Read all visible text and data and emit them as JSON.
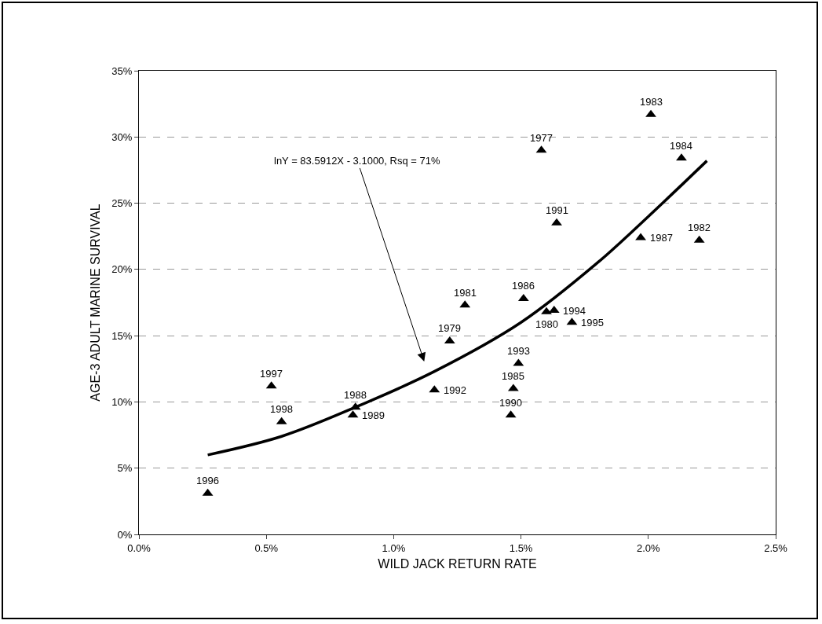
{
  "chart_data": {
    "type": "scatter",
    "xlabel": "WILD JACK RETURN RATE",
    "ylabel": "AGE-3 ADULT MARINE SURVIVAL",
    "xlim": [
      0,
      2.5
    ],
    "xticks": [
      {
        "value": 0,
        "label": "0.0%"
      },
      {
        "value": 0.5,
        "label": "0.5%"
      },
      {
        "value": 1,
        "label": "1.0%"
      },
      {
        "value": 1.5,
        "label": "1.5%"
      },
      {
        "value": 2,
        "label": "2.0%"
      },
      {
        "value": 2.5,
        "label": "2.5%"
      }
    ],
    "ylim": [
      0,
      35
    ],
    "yticks": [
      {
        "value": 0,
        "label": "0%"
      },
      {
        "value": 5,
        "label": "5%"
      },
      {
        "value": 10,
        "label": "10%"
      },
      {
        "value": 15,
        "label": "15%"
      },
      {
        "value": 20,
        "label": "20%"
      },
      {
        "value": 25,
        "label": "25%"
      },
      {
        "value": 30,
        "label": "30%"
      },
      {
        "value": 35,
        "label": "35%"
      }
    ],
    "grid": "y",
    "marker": "triangle",
    "series": [
      {
        "color": "#000000",
        "x": [
          0.27,
          0.52,
          0.56,
          0.84,
          0.85,
          1.16,
          1.22,
          1.28,
          1.46,
          1.47,
          1.49,
          1.51,
          1.6,
          1.63,
          1.7,
          1.58,
          1.64,
          1.97,
          2.01,
          2.13,
          2.2
        ],
        "values": [
          3.1,
          11.2,
          8.5,
          9.0,
          9.6,
          10.9,
          14.6,
          17.3,
          9.0,
          11.0,
          12.9,
          17.8,
          16.8,
          16.9,
          16.0,
          29.0,
          23.5,
          22.4,
          31.7,
          28.4,
          22.2
        ]
      },
      {
        "type": "line",
        "color": "#000000",
        "marker": "none",
        "line_style": "solid",
        "x": [
          0.27,
          0.56,
          0.85,
          1.16,
          1.5,
          1.8,
          2.0,
          2.23
        ],
        "values": [
          6.0,
          7.4,
          9.6,
          12.3,
          16.0,
          20.5,
          24.0,
          28.2
        ]
      }
    ],
    "annotations": [
      "lnY = 83.5912X - 3.1000, Rsq = 71%",
      {
        "text": "1996",
        "x": 0.27,
        "y": 3.1
      },
      {
        "text": "1997",
        "x": 0.52,
        "y": 11.2
      },
      {
        "text": "1998",
        "x": 0.56,
        "y": 8.5
      },
      {
        "text": "1989",
        "x": 0.84,
        "y": 9.0
      },
      {
        "text": "1988",
        "x": 0.85,
        "y": 9.6
      },
      {
        "text": "1992",
        "x": 1.16,
        "y": 10.9
      },
      {
        "text": "1979",
        "x": 1.22,
        "y": 14.6
      },
      {
        "text": "1981",
        "x": 1.28,
        "y": 17.3
      },
      {
        "text": "1990",
        "x": 1.46,
        "y": 9.0
      },
      {
        "text": "1985",
        "x": 1.47,
        "y": 11.0
      },
      {
        "text": "1993",
        "x": 1.49,
        "y": 12.9
      },
      {
        "text": "1986",
        "x": 1.51,
        "y": 17.8
      },
      {
        "text": "1980",
        "x": 1.6,
        "y": 16.8
      },
      {
        "text": "1994",
        "x": 1.63,
        "y": 16.9
      },
      {
        "text": "1995",
        "x": 1.7,
        "y": 16.0
      },
      {
        "text": "1977",
        "x": 1.58,
        "y": 29.0
      },
      {
        "text": "1991",
        "x": 1.64,
        "y": 23.5
      },
      {
        "text": "1987",
        "x": 1.97,
        "y": 22.4
      },
      {
        "text": "1983",
        "x": 2.01,
        "y": 31.7
      },
      {
        "text": "1984",
        "x": 2.13,
        "y": 28.4
      },
      {
        "text": "1982",
        "x": 2.2,
        "y": 22.2
      }
    ]
  }
}
